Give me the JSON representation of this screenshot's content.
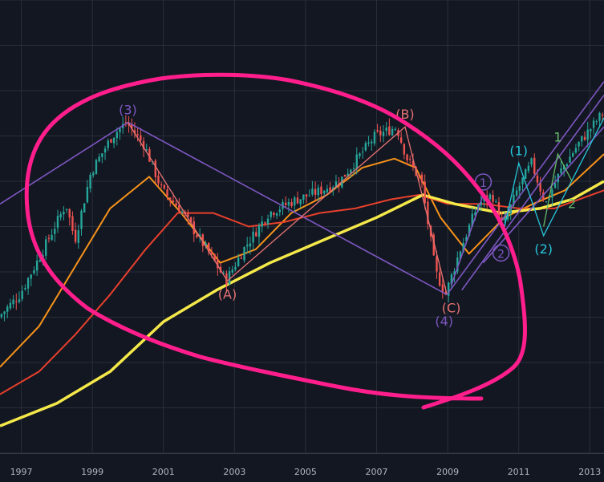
{
  "chart_data": {
    "type": "candlestick",
    "title": "",
    "xlabel": "",
    "ylabel": "",
    "x_ticks": [
      "1997",
      "1999",
      "2001",
      "2003",
      "2005",
      "2007",
      "2009",
      "2011",
      "2013"
    ],
    "xlim": [
      1996.4,
      2013.4
    ],
    "ylim": [
      0,
      100
    ],
    "grid": true,
    "colors": {
      "background": "#131722",
      "grid": "#2a2e39",
      "up": "#26a69a",
      "down": "#ef5350",
      "ma_fast": "#f7931a",
      "ma_mid": "#e8402c",
      "ma_slow": "#f5e94a",
      "wave_primary": "#7e57c2",
      "wave_abc": "#e57373",
      "wave_cyan": "#26c6da",
      "wave_green": "#66bb6a",
      "annotation": "#ff1e8c"
    },
    "price": [
      [
        1996.4,
        30
      ],
      [
        1997.0,
        35
      ],
      [
        1997.6,
        44
      ],
      [
        1998.3,
        55
      ],
      [
        1998.55,
        47
      ],
      [
        1999.0,
        62
      ],
      [
        1999.6,
        70
      ],
      [
        2000.0,
        73
      ],
      [
        2000.5,
        68
      ],
      [
        2001.0,
        58
      ],
      [
        2001.5,
        54
      ],
      [
        2002.0,
        48
      ],
      [
        2002.5,
        42
      ],
      [
        2002.8,
        38
      ],
      [
        2003.3,
        45
      ],
      [
        2004.0,
        53
      ],
      [
        2004.8,
        56
      ],
      [
        2005.5,
        58
      ],
      [
        2006.0,
        60
      ],
      [
        2006.5,
        65
      ],
      [
        2007.0,
        70
      ],
      [
        2007.6,
        72
      ],
      [
        2007.9,
        65
      ],
      [
        2008.3,
        60
      ],
      [
        2008.7,
        40
      ],
      [
        2008.98,
        35
      ],
      [
        2009.4,
        45
      ],
      [
        2009.9,
        55
      ],
      [
        2010.3,
        57
      ],
      [
        2010.6,
        50
      ],
      [
        2011.0,
        58
      ],
      [
        2011.4,
        64
      ],
      [
        2011.8,
        55
      ],
      [
        2012.2,
        62
      ],
      [
        2012.7,
        68
      ],
      [
        2013.4,
        75
      ]
    ],
    "moving_averages": [
      {
        "key": "ma_fast",
        "values": [
          [
            1996.4,
            19
          ],
          [
            1997.5,
            28
          ],
          [
            1998.5,
            41
          ],
          [
            1999.5,
            54
          ],
          [
            2000.6,
            61
          ],
          [
            2001.5,
            53
          ],
          [
            2002.6,
            42
          ],
          [
            2003.6,
            45
          ],
          [
            2004.6,
            53
          ],
          [
            2005.6,
            57
          ],
          [
            2006.6,
            63
          ],
          [
            2007.5,
            65
          ],
          [
            2008.1,
            63
          ],
          [
            2008.8,
            52
          ],
          [
            2009.6,
            44
          ],
          [
            2010.6,
            52
          ],
          [
            2011.4,
            55
          ],
          [
            2012.3,
            58
          ],
          [
            2013.4,
            66
          ]
        ]
      },
      {
        "key": "ma_mid",
        "values": [
          [
            1996.4,
            13
          ],
          [
            1997.5,
            18
          ],
          [
            1998.5,
            26
          ],
          [
            1999.5,
            35
          ],
          [
            2000.5,
            45
          ],
          [
            2001.4,
            53
          ],
          [
            2002.4,
            53
          ],
          [
            2003.4,
            50
          ],
          [
            2004.4,
            51
          ],
          [
            2005.4,
            53
          ],
          [
            2006.4,
            54
          ],
          [
            2007.4,
            56
          ],
          [
            2008.2,
            57
          ],
          [
            2009.0,
            55
          ],
          [
            2010.0,
            55
          ],
          [
            2011.0,
            54
          ],
          [
            2012.0,
            54
          ],
          [
            2013.4,
            58
          ]
        ]
      },
      {
        "key": "ma_slow",
        "values": [
          [
            1996.4,
            6
          ],
          [
            1998.0,
            11
          ],
          [
            1999.5,
            18
          ],
          [
            2001.0,
            29
          ],
          [
            2002.5,
            36
          ],
          [
            2004.0,
            42
          ],
          [
            2005.5,
            47
          ],
          [
            2007.0,
            52
          ],
          [
            2008.3,
            57
          ],
          [
            2009.2,
            55
          ],
          [
            2010.5,
            53
          ],
          [
            2011.6,
            54
          ],
          [
            2012.5,
            56
          ],
          [
            2013.4,
            60
          ]
        ]
      }
    ],
    "wave_lines": [
      {
        "color": "wave_primary",
        "points": [
          [
            1996.4,
            55
          ],
          [
            2000.0,
            73
          ],
          [
            2008.98,
            35
          ]
        ]
      },
      {
        "color": "wave_abc",
        "points": [
          [
            2000.0,
            73
          ],
          [
            2002.8,
            38
          ],
          [
            2007.8,
            72
          ],
          [
            2008.98,
            35
          ]
        ]
      },
      {
        "color": "wave_primary",
        "points": [
          [
            2008.98,
            35
          ],
          [
            2013.4,
            82
          ]
        ]
      },
      {
        "color": "wave_primary",
        "points": [
          [
            2009.4,
            36
          ],
          [
            2013.4,
            79
          ]
        ]
      },
      {
        "color": "wave_primary",
        "points": [
          [
            2010.0,
            42
          ],
          [
            2013.4,
            72
          ]
        ]
      },
      {
        "color": "wave_primary",
        "points": [
          [
            2009.1,
            37
          ],
          [
            2010.0,
            57
          ],
          [
            2010.6,
            50
          ]
        ]
      },
      {
        "color": "wave_cyan",
        "points": [
          [
            2010.6,
            50
          ],
          [
            2011.0,
            64
          ],
          [
            2011.7,
            48
          ],
          [
            2013.4,
            74
          ]
        ]
      },
      {
        "color": "wave_green",
        "points": [
          [
            2011.7,
            50
          ],
          [
            2012.1,
            66
          ],
          [
            2012.5,
            60
          ]
        ]
      }
    ],
    "labels": [
      {
        "text": "(3)",
        "x": 2000.0,
        "y": 73,
        "color": "wave_primary",
        "anchor": "above"
      },
      {
        "text": "(A)",
        "x": 2002.8,
        "y": 38,
        "color": "wave_abc",
        "anchor": "below"
      },
      {
        "text": "(B)",
        "x": 2007.8,
        "y": 72,
        "color": "wave_abc",
        "anchor": "above"
      },
      {
        "text": "(C)",
        "x": 2009.1,
        "y": 35,
        "color": "wave_abc",
        "anchor": "below"
      },
      {
        "text": "(4)",
        "x": 2008.9,
        "y": 32,
        "color": "wave_primary",
        "anchor": "below"
      },
      {
        "text": "1",
        "x": 2010.0,
        "y": 57,
        "color": "wave_primary",
        "anchor": "above",
        "circled": true
      },
      {
        "text": "2",
        "x": 2010.5,
        "y": 47,
        "color": "wave_primary",
        "anchor": "below",
        "circled": true
      },
      {
        "text": "(1)",
        "x": 2011.0,
        "y": 64,
        "color": "wave_cyan",
        "anchor": "above"
      },
      {
        "text": "(2)",
        "x": 2011.7,
        "y": 48,
        "color": "wave_cyan",
        "anchor": "below"
      },
      {
        "text": "1",
        "x": 2012.1,
        "y": 67,
        "color": "wave_green",
        "anchor": "above"
      },
      {
        "text": "2",
        "x": 2012.5,
        "y": 58,
        "color": "wave_green",
        "anchor": "below"
      }
    ]
  }
}
